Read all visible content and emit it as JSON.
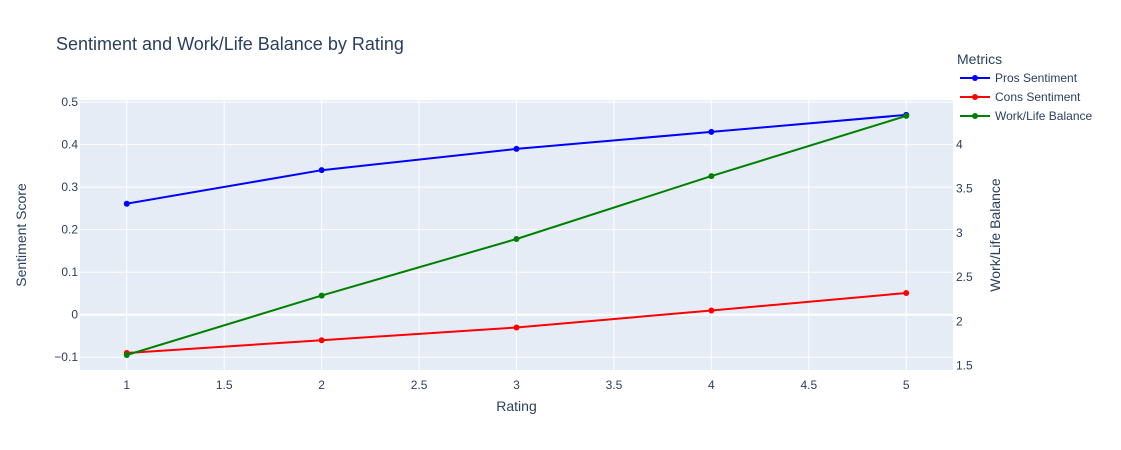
{
  "chart_data": {
    "type": "line",
    "title": "Sentiment and Work/Life Balance by Rating",
    "xlabel": "Rating",
    "ylabel": "Sentiment Score",
    "y2label": "Work/Life Balance",
    "xlim": [
      0.76,
      5.24
    ],
    "ylim": [
      -0.13,
      0.505
    ],
    "y2lim": [
      1.45,
      4.5
    ],
    "x_ticks": [
      1,
      1.5,
      2,
      2.5,
      3,
      3.5,
      4,
      4.5,
      5
    ],
    "x_tick_labels": [
      "1",
      "1.5",
      "2",
      "2.5",
      "3",
      "3.5",
      "4",
      "4.5",
      "5"
    ],
    "y_ticks": [
      -0.1,
      0,
      0.1,
      0.2,
      0.3,
      0.4,
      0.5
    ],
    "y_tick_labels": [
      "−0.1",
      "0",
      "0.1",
      "0.2",
      "0.3",
      "0.4",
      "0.5"
    ],
    "y2_ticks": [
      1.5,
      2,
      2.5,
      3,
      3.5,
      4
    ],
    "y2_tick_labels": [
      "1.5",
      "2",
      "2.5",
      "3",
      "3.5",
      "4"
    ],
    "grid": true,
    "legend_title": "Metrics",
    "legend_position": "top-right",
    "x": [
      1,
      2,
      3,
      4,
      5
    ],
    "series": [
      {
        "name": "Pros Sentiment",
        "axis": "y",
        "color": "#0000ff",
        "values": [
          0.261,
          0.34,
          0.39,
          0.43,
          0.47
        ]
      },
      {
        "name": "Cons Sentiment",
        "axis": "y",
        "color": "#ff0000",
        "values": [
          -0.09,
          -0.06,
          -0.03,
          0.01,
          0.051
        ]
      },
      {
        "name": "Work/Life Balance",
        "axis": "y2",
        "color": "#008000",
        "values": [
          1.62,
          2.29,
          2.93,
          3.64,
          4.32
        ]
      }
    ]
  }
}
